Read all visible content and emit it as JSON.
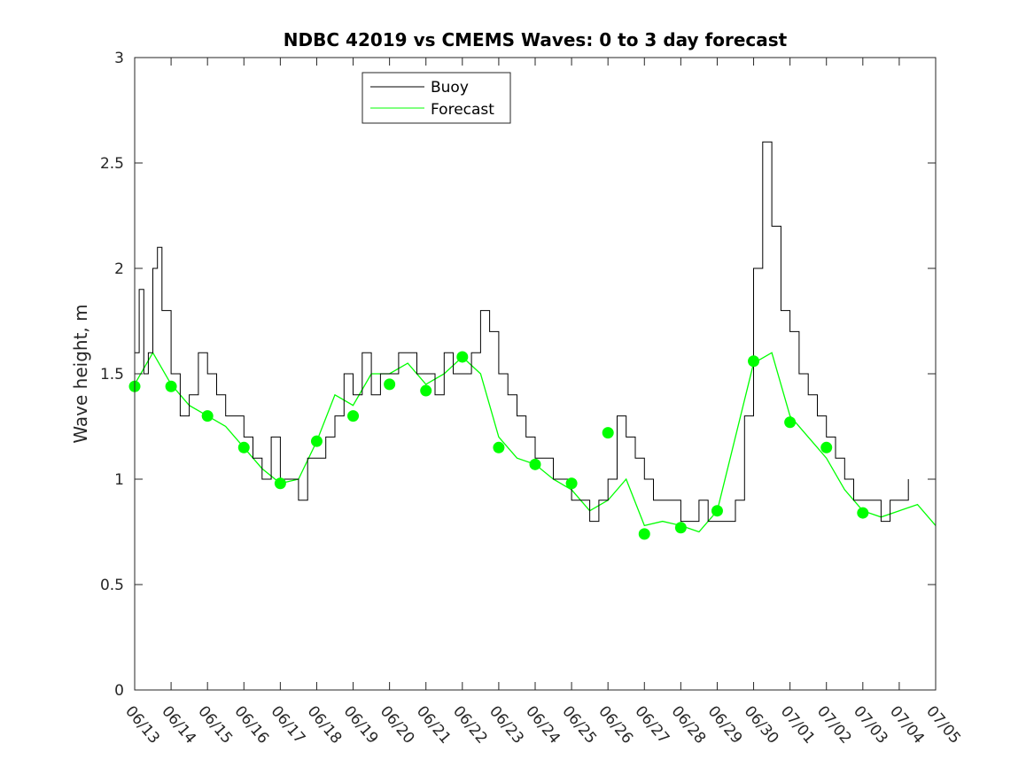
{
  "chart_data": {
    "type": "line",
    "title": "NDBC 42019 vs CMEMS Waves: 0 to 3 day forecast",
    "xlabel": "",
    "ylabel": "Wave height, m",
    "xlim": [
      "06/13",
      "07/05"
    ],
    "ylim": [
      0,
      3
    ],
    "y_ticks": [
      "0",
      "0.5",
      "1",
      "1.5",
      "2",
      "2.5",
      "3"
    ],
    "x_ticks": [
      "06/13",
      "06/14",
      "06/15",
      "06/16",
      "06/17",
      "06/18",
      "06/19",
      "06/20",
      "06/21",
      "06/22",
      "06/23",
      "06/24",
      "06/25",
      "06/26",
      "06/27",
      "06/28",
      "06/29",
      "06/30",
      "07/01",
      "07/02",
      "07/03",
      "07/04",
      "07/05"
    ],
    "grid": false,
    "legend": {
      "position": "top-left",
      "entries": [
        "Buoy",
        "Forecast"
      ]
    },
    "colors": {
      "buoy": "#000000",
      "forecast": "#00ff00",
      "dots": "#00ff00"
    },
    "series": [
      {
        "name": "Buoy",
        "x": [
          "06/13",
          "06/13 03:00",
          "06/13 06:00",
          "06/13 09:00",
          "06/13 12:00",
          "06/13 15:00",
          "06/13 18:00",
          "06/14",
          "06/14 06:00",
          "06/14 12:00",
          "06/14 18:00",
          "06/15",
          "06/15 06:00",
          "06/15 12:00",
          "06/15 18:00",
          "06/16",
          "06/16 06:00",
          "06/16 12:00",
          "06/16 18:00",
          "06/17",
          "06/17 06:00",
          "06/17 12:00",
          "06/17 18:00",
          "06/18",
          "06/18 06:00",
          "06/18 12:00",
          "06/18 18:00",
          "06/19",
          "06/19 06:00",
          "06/19 12:00",
          "06/19 18:00",
          "06/20",
          "06/20 06:00",
          "06/20 12:00",
          "06/20 18:00",
          "06/21",
          "06/21 06:00",
          "06/21 12:00",
          "06/21 18:00",
          "06/22",
          "06/22 06:00",
          "06/22 12:00",
          "06/22 18:00",
          "06/23",
          "06/23 06:00",
          "06/23 12:00",
          "06/23 18:00",
          "06/24",
          "06/24 06:00",
          "06/24 12:00",
          "06/24 18:00",
          "06/25",
          "06/25 06:00",
          "06/25 12:00",
          "06/25 18:00",
          "06/26",
          "06/26 06:00",
          "06/26 12:00",
          "06/26 18:00",
          "06/27",
          "06/27 06:00",
          "06/27 12:00",
          "06/27 18:00",
          "06/28",
          "06/28 06:00",
          "06/28 12:00",
          "06/28 18:00",
          "06/29",
          "06/29 06:00",
          "06/29 12:00",
          "06/29 18:00",
          "06/30",
          "06/30 06:00",
          "06/30 12:00",
          "06/30 18:00",
          "07/01",
          "07/01 06:00",
          "07/01 12:00",
          "07/01 18:00",
          "07/02",
          "07/02 06:00",
          "07/02 12:00",
          "07/02 18:00",
          "07/03",
          "07/03 06:00",
          "07/03 12:00",
          "07/03 18:00",
          "07/04",
          "07/04 06:00"
        ],
        "values": [
          1.6,
          1.9,
          1.5,
          1.6,
          2.0,
          2.1,
          1.8,
          1.5,
          1.3,
          1.4,
          1.6,
          1.5,
          1.4,
          1.3,
          1.3,
          1.2,
          1.1,
          1.0,
          1.2,
          1.0,
          1.0,
          0.9,
          1.1,
          1.1,
          1.2,
          1.3,
          1.5,
          1.4,
          1.6,
          1.4,
          1.5,
          1.5,
          1.6,
          1.6,
          1.5,
          1.5,
          1.4,
          1.6,
          1.5,
          1.5,
          1.6,
          1.8,
          1.7,
          1.5,
          1.4,
          1.3,
          1.2,
          1.1,
          1.1,
          1.0,
          1.0,
          0.9,
          0.9,
          0.8,
          0.9,
          1.0,
          1.3,
          1.2,
          1.1,
          1.0,
          0.9,
          0.9,
          0.9,
          0.8,
          0.8,
          0.9,
          0.8,
          0.8,
          0.8,
          0.9,
          1.3,
          2.0,
          2.6,
          2.2,
          1.8,
          1.7,
          1.5,
          1.4,
          1.3,
          1.2,
          1.1,
          1.0,
          0.9,
          0.9,
          0.9,
          0.8,
          0.9,
          0.9,
          1.0
        ]
      },
      {
        "name": "Forecast",
        "x": [
          "06/13",
          "06/13 12:00",
          "06/14",
          "06/14 12:00",
          "06/15",
          "06/15 12:00",
          "06/16",
          "06/16 12:00",
          "06/17",
          "06/17 12:00",
          "06/18",
          "06/18 12:00",
          "06/19",
          "06/19 12:00",
          "06/20",
          "06/20 12:00",
          "06/21",
          "06/21 12:00",
          "06/22",
          "06/22 12:00",
          "06/23",
          "06/23 12:00",
          "06/24",
          "06/24 12:00",
          "06/25",
          "06/25 12:00",
          "06/26",
          "06/26 12:00",
          "06/27",
          "06/27 12:00",
          "06/28",
          "06/28 12:00",
          "06/29",
          "06/29 12:00",
          "06/30",
          "06/30 12:00",
          "07/01",
          "07/01 12:00",
          "07/02",
          "07/02 12:00",
          "07/03",
          "07/03 12:00",
          "07/04",
          "07/04 12:00",
          "07/05"
        ],
        "values": [
          1.45,
          1.6,
          1.45,
          1.35,
          1.3,
          1.25,
          1.15,
          1.05,
          0.98,
          1.0,
          1.18,
          1.4,
          1.35,
          1.5,
          1.5,
          1.55,
          1.45,
          1.5,
          1.58,
          1.5,
          1.2,
          1.1,
          1.07,
          1.0,
          0.95,
          0.85,
          0.9,
          1.0,
          0.78,
          0.8,
          0.78,
          0.75,
          0.85,
          1.2,
          1.55,
          1.6,
          1.3,
          1.2,
          1.1,
          0.95,
          0.85,
          0.82,
          0.85,
          0.88,
          0.78
        ]
      }
    ],
    "daily_analysis_points": {
      "x": [
        "06/13",
        "06/14",
        "06/15",
        "06/16",
        "06/17",
        "06/18",
        "06/19",
        "06/20",
        "06/21",
        "06/22",
        "06/23",
        "06/24",
        "06/25",
        "06/26",
        "06/27",
        "06/28",
        "06/29",
        "06/30",
        "07/01",
        "07/02",
        "07/03"
      ],
      "values": [
        1.44,
        1.44,
        1.3,
        1.15,
        0.98,
        1.18,
        1.3,
        1.45,
        1.42,
        1.58,
        1.15,
        1.07,
        0.98,
        1.22,
        0.74,
        0.77,
        0.85,
        1.56,
        1.27,
        1.15,
        0.84
      ]
    }
  }
}
